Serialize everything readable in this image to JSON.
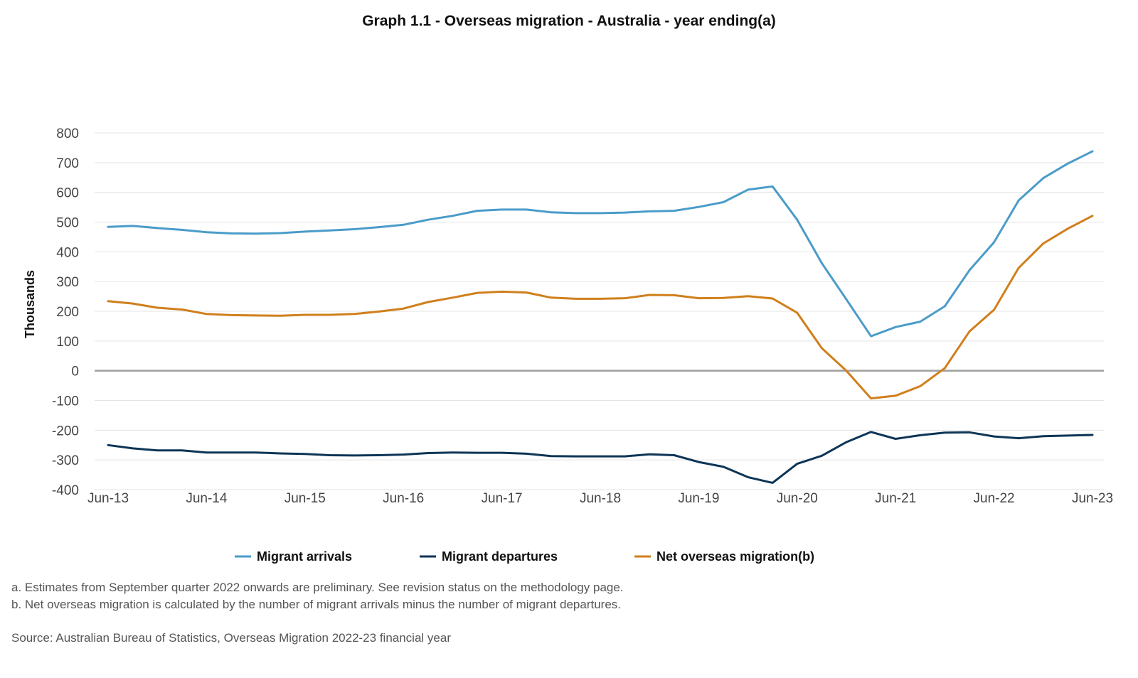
{
  "chart_data": {
    "type": "line",
    "title": "Graph 1.1 - Overseas migration - Australia - year ending(a)",
    "ylabel": "Thousands",
    "xlabel": "",
    "ylim": [
      -400,
      800
    ],
    "yticks": [
      800,
      700,
      600,
      500,
      400,
      300,
      200,
      100,
      0,
      -100,
      -200,
      -300,
      -400
    ],
    "grid": true,
    "legend_position": "bottom",
    "x": [
      "Jun-13",
      "Sep-13",
      "Dec-13",
      "Mar-14",
      "Jun-14",
      "Sep-14",
      "Dec-14",
      "Mar-15",
      "Jun-15",
      "Sep-15",
      "Dec-15",
      "Mar-16",
      "Jun-16",
      "Sep-16",
      "Dec-16",
      "Mar-17",
      "Jun-17",
      "Sep-17",
      "Dec-17",
      "Mar-18",
      "Jun-18",
      "Sep-18",
      "Dec-18",
      "Mar-19",
      "Jun-19",
      "Sep-19",
      "Dec-19",
      "Mar-20",
      "Jun-20",
      "Sep-20",
      "Dec-20",
      "Mar-21",
      "Jun-21",
      "Sep-21",
      "Dec-21",
      "Mar-22",
      "Jun-22",
      "Sep-22",
      "Dec-22",
      "Mar-23",
      "Jun-23"
    ],
    "xtick_labels": [
      "Jun-13",
      "Jun-14",
      "Jun-15",
      "Jun-16",
      "Jun-17",
      "Jun-18",
      "Jun-19",
      "Jun-20",
      "Jun-21",
      "Jun-22",
      "Jun-23"
    ],
    "series": [
      {
        "name": "Migrant arrivals",
        "color": "#4a9cc9",
        "values": [
          484,
          487,
          480,
          474,
          466,
          462,
          461,
          463,
          468,
          472,
          476,
          483,
          491,
          508,
          521,
          538,
          542,
          542,
          533,
          530,
          530,
          532,
          536,
          538,
          551,
          567,
          609,
          620,
          508,
          362,
          240,
          116,
          147,
          165,
          217,
          338,
          432,
          573,
          648,
          697,
          738
        ]
      },
      {
        "name": "Migrant departures",
        "color": "#0d3556",
        "values": [
          -250,
          -261,
          -268,
          -268,
          -275,
          -275,
          -275,
          -278,
          -280,
          -284,
          -285,
          -284,
          -282,
          -277,
          -275,
          -276,
          -276,
          -279,
          -287,
          -288,
          -288,
          -288,
          -281,
          -284,
          -307,
          -323,
          -358,
          -377,
          -313,
          -286,
          -240,
          -206,
          -229,
          -217,
          -208,
          -207,
          -221,
          -227,
          -220,
          -218,
          -216
        ]
      },
      {
        "name": "Net overseas migration(b)",
        "color": "#d07f1c",
        "values": [
          234,
          226,
          212,
          206,
          191,
          187,
          186,
          185,
          188,
          188,
          191,
          199,
          209,
          231,
          246,
          262,
          266,
          263,
          246,
          242,
          242,
          244,
          255,
          254,
          244,
          245,
          251,
          243,
          195,
          76,
          0,
          -93,
          -84,
          -52,
          9,
          132,
          205,
          346,
          428,
          478,
          521
        ]
      }
    ]
  },
  "notes": {
    "a": "a. Estimates from September quarter 2022 onwards are preliminary. See revision status on the methodology page.",
    "b": "b. Net overseas migration is calculated by the number of migrant arrivals minus the number of migrant departures.",
    "source": "Source: Australian Bureau of Statistics, Overseas Migration 2022-23 financial year"
  }
}
